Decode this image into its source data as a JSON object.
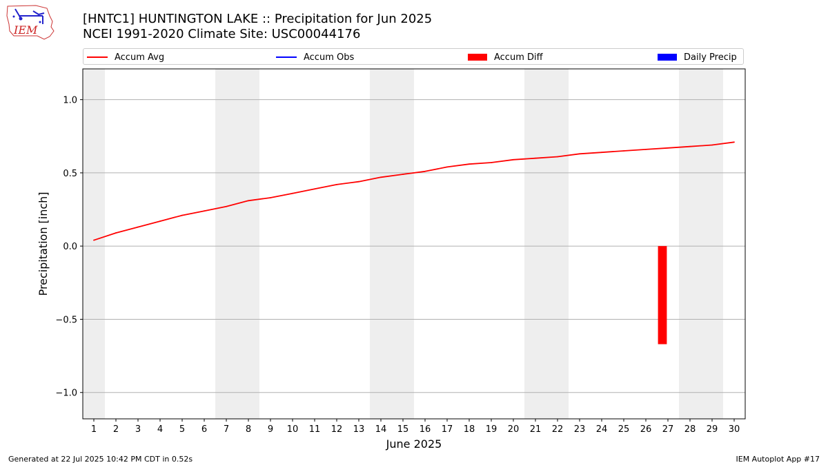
{
  "title_line1": "[HNTC1] HUNTINGTON LAKE :: Precipitation for Jun 2025",
  "title_line2": "NCEI 1991-2020 Climate Site: USC00044176",
  "logo_text": "IEM",
  "footer_left": "Generated at 22 Jul 2025 10:42 PM CDT in 0.52s",
  "footer_right": "IEM Autoplot App #17",
  "legend": [
    {
      "label": "Accum Avg",
      "kind": "line",
      "color": "#ff0000"
    },
    {
      "label": "Accum Obs",
      "kind": "line",
      "color": "#0000ff"
    },
    {
      "label": "Accum Diff",
      "kind": "bar",
      "color": "#ff0000"
    },
    {
      "label": "Daily Precip",
      "kind": "bar",
      "color": "#0000ff"
    }
  ],
  "chart_data": {
    "type": "line",
    "xlabel": "June 2025",
    "ylabel": "Precipitation [inch]",
    "x": [
      1,
      2,
      3,
      4,
      5,
      6,
      7,
      8,
      9,
      10,
      11,
      12,
      13,
      14,
      15,
      16,
      17,
      18,
      19,
      20,
      21,
      22,
      23,
      24,
      25,
      26,
      27,
      28,
      29,
      30
    ],
    "xlim": [
      0.5,
      30.5
    ],
    "ylim": [
      -1.18,
      1.21
    ],
    "yticks": [
      1.0,
      0.5,
      0.0,
      -0.5,
      -1.0
    ],
    "ytick_labels": [
      "1.0",
      "0.5",
      "0.0",
      "−0.5",
      "−1.0"
    ],
    "grid": "y",
    "weekend_shading": [
      [
        1,
        1
      ],
      [
        7,
        8
      ],
      [
        14,
        15
      ],
      [
        21,
        22
      ],
      [
        28,
        29
      ]
    ],
    "shading_color": "#eeeeee",
    "series": [
      {
        "name": "Accum Avg",
        "type": "line",
        "color": "#ff0000",
        "x": [
          1,
          2,
          3,
          4,
          5,
          6,
          7,
          8,
          9,
          10,
          11,
          12,
          13,
          14,
          15,
          16,
          17,
          18,
          19,
          20,
          21,
          22,
          23,
          24,
          25,
          26,
          27,
          28,
          29,
          30
        ],
        "values": [
          0.04,
          0.09,
          0.13,
          0.17,
          0.21,
          0.24,
          0.27,
          0.31,
          0.33,
          0.36,
          0.39,
          0.42,
          0.44,
          0.47,
          0.49,
          0.51,
          0.54,
          0.56,
          0.57,
          0.59,
          0.6,
          0.61,
          0.63,
          0.64,
          0.65,
          0.66,
          0.67,
          0.68,
          0.69,
          0.71
        ]
      },
      {
        "name": "Accum Diff",
        "type": "bar",
        "color": "#ff0000",
        "x": [
          27
        ],
        "bar_offset": -0.25,
        "bar_width": 0.4,
        "values": [
          -0.67
        ]
      }
    ]
  }
}
